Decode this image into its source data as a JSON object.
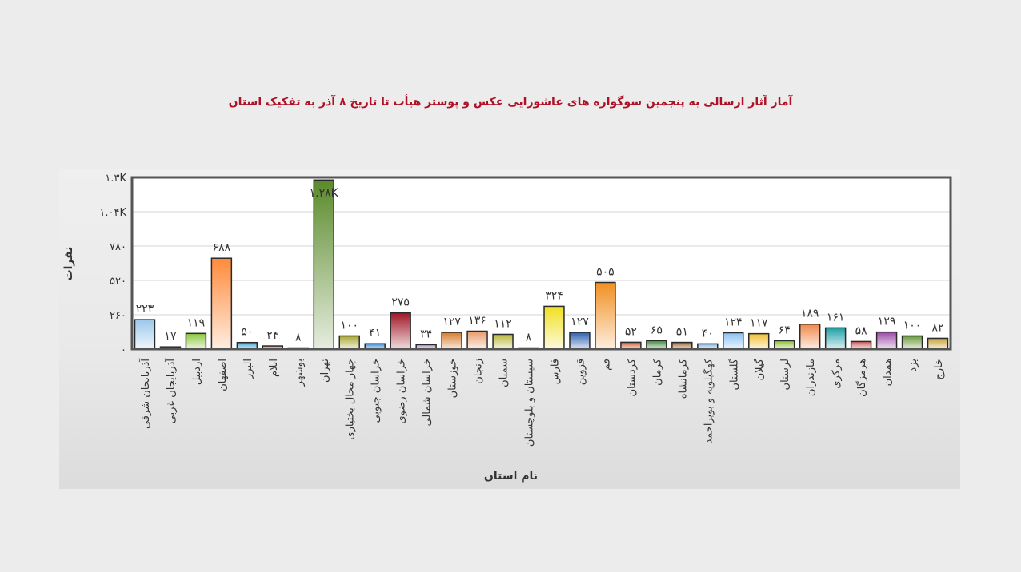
{
  "chart_data": {
    "type": "bar",
    "title": "آمار آثار ارسالی به پنجمین سوگواره های عاشورایی عکس و پوستر هیأت تا تاریخ ۸ آذر به تفکیک استان",
    "xlabel": "نام استان",
    "ylabel": "نفرات",
    "ylim": [
      0,
      1300
    ],
    "yticks": [
      0,
      260,
      520,
      780,
      1040,
      1300
    ],
    "ytick_labels": [
      "۰",
      "۲۶۰",
      "۵۲۰",
      "۷۸۰",
      "۱.۰۴K",
      "۱.۳K"
    ],
    "grid": true,
    "categories": [
      "آذربایجان شرقی",
      "آذربایجان غربی",
      "اردبیل",
      "اصفهان",
      "البرز",
      "ایلام",
      "بوشهر",
      "تهران",
      "چهار محال بختیاری",
      "خراسان جنوبی",
      "خراسان رضوی",
      "خراسان شمالی",
      "خوزستان",
      "زنجان",
      "سمنان",
      "سیستان و بلوچستان",
      "فارس",
      "قزوین",
      "قم",
      "کردستان",
      "کرمان",
      "کرمانشاه",
      "کهگیلویه و بویراحمد",
      "گلستان",
      "گیلان",
      "لرستان",
      "مازندران",
      "مرکزی",
      "هرمزگان",
      "همدان",
      "یزد",
      "خارج"
    ],
    "values": [
      223,
      17,
      119,
      688,
      50,
      24,
      8,
      1280,
      100,
      41,
      275,
      34,
      127,
      136,
      112,
      8,
      324,
      127,
      505,
      52,
      65,
      51,
      40,
      124,
      117,
      64,
      189,
      161,
      58,
      129,
      100,
      82
    ],
    "value_labels": [
      "۲۲۳",
      "۱۷",
      "۱۱۹",
      "۶۸۸",
      "۵۰",
      "۲۴",
      "۸",
      "۱.۲۸K",
      "۱۰۰",
      "۴۱",
      "۲۷۵",
      "۳۴",
      "۱۲۷",
      "۱۳۶",
      "۱۱۲",
      "۸",
      "۳۲۴",
      "۱۲۷",
      "۵۰۵",
      "۵۲",
      "۶۵",
      "۵۱",
      "۴۰",
      "۱۲۴",
      "۱۱۷",
      "۶۴",
      "۱۸۹",
      "۱۶۱",
      "۵۸",
      "۱۲۹",
      "۱۰۰",
      "۸۲"
    ],
    "colors": [
      "#9cc8ea",
      "#c8a040",
      "#8ac83a",
      "#ff8a3a",
      "#3aa0d8",
      "#e07a6a",
      "#555555",
      "#5a8a2a",
      "#a8a830",
      "#3a8ad0",
      "#a01525",
      "#b090c8",
      "#d87a2a",
      "#e89a6a",
      "#b8b838",
      "#666666",
      "#f0e020",
      "#2a60b0",
      "#f09020",
      "#d05a2a",
      "#3a8a3a",
      "#a0642a",
      "#90b8d8",
      "#8ac0f0",
      "#f0c030",
      "#8ac030",
      "#f08a4a",
      "#20a0a8",
      "#d05a5a",
      "#9a4aa8",
      "#6a9a3a",
      "#c8a030"
    ]
  }
}
